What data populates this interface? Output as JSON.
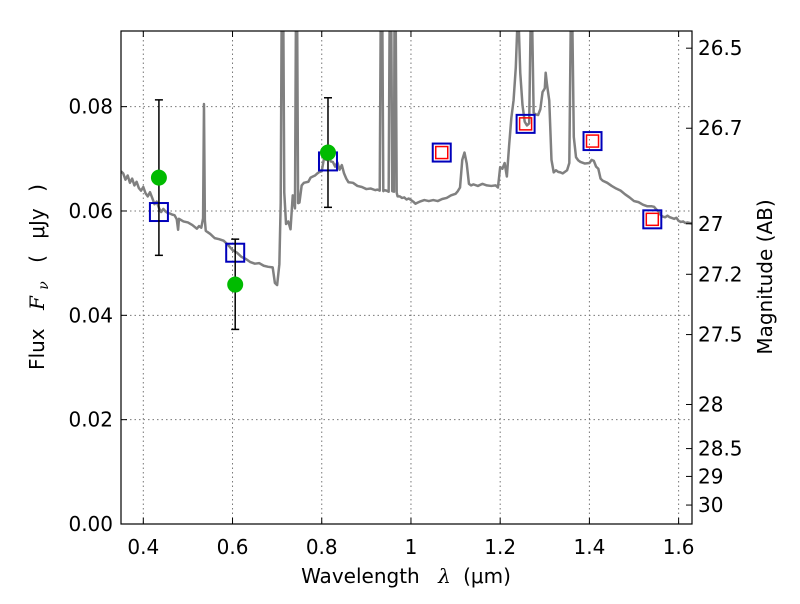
{
  "chart_data": {
    "type": "scatter",
    "xlabel_prefix": "Wavelength",
    "xlabel_symbol": "λ",
    "xlabel_unit": "(μm)",
    "ylabel_prefix": "Flux",
    "ylabel_symbol": "F",
    "ylabel_subscript": "ν",
    "ylabel_unit_open": "(",
    "ylabel_unit": "μJy",
    "ylabel_unit_close": ")",
    "y2label": "Magnitude (AB)",
    "xlim": [
      0.35,
      1.63
    ],
    "ylim": [
      0.0,
      0.0945
    ],
    "grid": true,
    "x_ticks": [
      {
        "value": 0.4,
        "label": "0.4"
      },
      {
        "value": 0.6,
        "label": "0.6"
      },
      {
        "value": 0.8,
        "label": "0.8"
      },
      {
        "value": 1.0,
        "label": "1"
      },
      {
        "value": 1.2,
        "label": "1.2"
      },
      {
        "value": 1.4,
        "label": "1.4"
      },
      {
        "value": 1.6,
        "label": "1.6"
      }
    ],
    "y_ticks": [
      {
        "value": 0.0,
        "label": "0.00"
      },
      {
        "value": 0.02,
        "label": "0.02"
      },
      {
        "value": 0.04,
        "label": "0.04"
      },
      {
        "value": 0.06,
        "label": "0.06"
      },
      {
        "value": 0.08,
        "label": "0.08"
      }
    ],
    "y2_ticks": [
      {
        "value": 26.5,
        "label": "26.5"
      },
      {
        "value": 26.7,
        "label": "26.7"
      },
      {
        "value": 27.0,
        "label": "27"
      },
      {
        "value": 27.2,
        "label": "27.2"
      },
      {
        "value": 27.5,
        "label": "27.5"
      },
      {
        "value": 28.0,
        "label": "28"
      },
      {
        "value": 28.5,
        "label": "28.5"
      },
      {
        "value": 29.0,
        "label": "29"
      },
      {
        "value": 30.0,
        "label": "30"
      }
    ],
    "colors": {
      "model": "#808080",
      "observed": "#00bb00",
      "model_blue": "#0000bb",
      "model_red": "#ff0000",
      "errorbar": "#000000"
    },
    "observed_points": [
      {
        "x": 0.435,
        "y": 0.0664,
        "err_low": 0.0515,
        "err_high": 0.0813
      },
      {
        "x": 0.606,
        "y": 0.0459,
        "err_low": 0.0373,
        "err_high": 0.0546
      },
      {
        "x": 0.814,
        "y": 0.0712,
        "err_low": 0.0607,
        "err_high": 0.0817
      }
    ],
    "model_photometry_blue": [
      {
        "x": 0.435,
        "y": 0.0598
      },
      {
        "x": 0.606,
        "y": 0.052
      },
      {
        "x": 0.814,
        "y": 0.0695
      },
      {
        "x": 1.069,
        "y": 0.0712
      },
      {
        "x": 1.257,
        "y": 0.0767
      },
      {
        "x": 1.407,
        "y": 0.0734
      },
      {
        "x": 1.541,
        "y": 0.0584
      }
    ],
    "model_photometry_red": [
      {
        "x": 1.069,
        "y": 0.0712
      },
      {
        "x": 1.257,
        "y": 0.0767
      },
      {
        "x": 1.407,
        "y": 0.0734
      },
      {
        "x": 1.541,
        "y": 0.0584
      }
    ],
    "sed_spectrum": [
      [
        0.35,
        0.0676
      ],
      [
        0.355,
        0.0672
      ],
      [
        0.36,
        0.066
      ],
      [
        0.365,
        0.0668
      ],
      [
        0.37,
        0.0654
      ],
      [
        0.375,
        0.0662
      ],
      [
        0.38,
        0.0649
      ],
      [
        0.385,
        0.0656
      ],
      [
        0.39,
        0.0644
      ],
      [
        0.395,
        0.0639
      ],
      [
        0.4,
        0.0646
      ],
      [
        0.405,
        0.0634
      ],
      [
        0.41,
        0.0628
      ],
      [
        0.415,
        0.0636
      ],
      [
        0.42,
        0.0625
      ],
      [
        0.425,
        0.0613
      ],
      [
        0.43,
        0.0618
      ],
      [
        0.435,
        0.0606
      ],
      [
        0.44,
        0.0598
      ],
      [
        0.445,
        0.0604
      ],
      [
        0.45,
        0.0599
      ],
      [
        0.455,
        0.0596
      ],
      [
        0.46,
        0.0595
      ],
      [
        0.465,
        0.0593
      ],
      [
        0.47,
        0.0592
      ],
      [
        0.475,
        0.0584
      ],
      [
        0.478,
        0.0564
      ],
      [
        0.48,
        0.0585
      ],
      [
        0.49,
        0.058
      ],
      [
        0.5,
        0.0578
      ],
      [
        0.51,
        0.0573
      ],
      [
        0.52,
        0.0566
      ],
      [
        0.525,
        0.0571
      ],
      [
        0.53,
        0.0568
      ],
      [
        0.534,
        0.0586
      ],
      [
        0.536,
        0.0805
      ],
      [
        0.538,
        0.0582
      ],
      [
        0.54,
        0.0562
      ],
      [
        0.55,
        0.0556
      ],
      [
        0.56,
        0.0548
      ],
      [
        0.57,
        0.0546
      ],
      [
        0.58,
        0.0543
      ],
      [
        0.59,
        0.0535
      ],
      [
        0.6,
        0.0525
      ],
      [
        0.61,
        0.052
      ],
      [
        0.62,
        0.0512
      ],
      [
        0.63,
        0.0508
      ],
      [
        0.64,
        0.0502
      ],
      [
        0.65,
        0.0499
      ],
      [
        0.66,
        0.05
      ],
      [
        0.67,
        0.0495
      ],
      [
        0.68,
        0.0493
      ],
      [
        0.69,
        0.0492
      ],
      [
        0.695,
        0.0462
      ],
      [
        0.7,
        0.0458
      ],
      [
        0.705,
        0.0498
      ],
      [
        0.708,
        0.0615
      ],
      [
        0.71,
        0.095
      ],
      [
        0.714,
        0.095
      ],
      [
        0.716,
        0.0635
      ],
      [
        0.72,
        0.0575
      ],
      [
        0.725,
        0.058
      ],
      [
        0.73,
        0.0565
      ],
      [
        0.735,
        0.063
      ],
      [
        0.74,
        0.0605
      ],
      [
        0.742,
        0.095
      ],
      [
        0.745,
        0.095
      ],
      [
        0.747,
        0.0615
      ],
      [
        0.75,
        0.0616
      ],
      [
        0.755,
        0.0649
      ],
      [
        0.76,
        0.0654
      ],
      [
        0.77,
        0.0656
      ],
      [
        0.775,
        0.0664
      ],
      [
        0.78,
        0.0666
      ],
      [
        0.785,
        0.0668
      ],
      [
        0.79,
        0.0672
      ],
      [
        0.795,
        0.0675
      ],
      [
        0.8,
        0.0676
      ],
      [
        0.805,
        0.0701
      ],
      [
        0.81,
        0.0698
      ],
      [
        0.815,
        0.0712
      ],
      [
        0.82,
        0.0695
      ],
      [
        0.825,
        0.0694
      ],
      [
        0.83,
        0.0685
      ],
      [
        0.835,
        0.0693
      ],
      [
        0.84,
        0.0679
      ],
      [
        0.845,
        0.0688
      ],
      [
        0.85,
        0.0672
      ],
      [
        0.855,
        0.0662
      ],
      [
        0.86,
        0.0655
      ],
      [
        0.87,
        0.0654
      ],
      [
        0.88,
        0.0648
      ],
      [
        0.89,
        0.0646
      ],
      [
        0.9,
        0.0642
      ],
      [
        0.91,
        0.0643
      ],
      [
        0.92,
        0.064
      ],
      [
        0.925,
        0.0641
      ],
      [
        0.93,
        0.0639
      ],
      [
        0.932,
        0.0945
      ],
      [
        0.936,
        0.0945
      ],
      [
        0.938,
        0.0638
      ],
      [
        0.94,
        0.064
      ],
      [
        0.945,
        0.0639
      ],
      [
        0.95,
        0.0637
      ],
      [
        0.952,
        0.0945
      ],
      [
        0.956,
        0.0945
      ],
      [
        0.958,
        0.0638
      ],
      [
        0.962,
        0.0637
      ],
      [
        0.963,
        0.0945
      ],
      [
        0.966,
        0.0945
      ],
      [
        0.968,
        0.0635
      ],
      [
        0.97,
        0.0628
      ],
      [
        0.975,
        0.0628
      ],
      [
        0.98,
        0.0625
      ],
      [
        0.985,
        0.0626
      ],
      [
        0.99,
        0.0622
      ],
      [
        0.995,
        0.0624
      ],
      [
        1.0,
        0.0621
      ],
      [
        1.005,
        0.0618
      ],
      [
        1.01,
        0.0614
      ],
      [
        1.015,
        0.0616
      ],
      [
        1.02,
        0.0618
      ],
      [
        1.03,
        0.0621
      ],
      [
        1.04,
        0.0619
      ],
      [
        1.05,
        0.0621
      ],
      [
        1.06,
        0.0619
      ],
      [
        1.07,
        0.0623
      ],
      [
        1.08,
        0.0625
      ],
      [
        1.09,
        0.063
      ],
      [
        1.1,
        0.0633
      ],
      [
        1.105,
        0.0638
      ],
      [
        1.11,
        0.0645
      ],
      [
        1.115,
        0.0698
      ],
      [
        1.12,
        0.0712
      ],
      [
        1.125,
        0.0691
      ],
      [
        1.13,
        0.0652
      ],
      [
        1.135,
        0.0649
      ],
      [
        1.14,
        0.0651
      ],
      [
        1.15,
        0.0648
      ],
      [
        1.16,
        0.0652
      ],
      [
        1.17,
        0.0649
      ],
      [
        1.18,
        0.0648
      ],
      [
        1.19,
        0.0649
      ],
      [
        1.195,
        0.0645
      ],
      [
        1.2,
        0.0684
      ],
      [
        1.205,
        0.0681
      ],
      [
        1.21,
        0.0692
      ],
      [
        1.215,
        0.0666
      ],
      [
        1.22,
        0.0725
      ],
      [
        1.225,
        0.0778
      ],
      [
        1.23,
        0.0812
      ],
      [
        1.235,
        0.0875
      ],
      [
        1.238,
        0.0945
      ],
      [
        1.242,
        0.0945
      ],
      [
        1.245,
        0.0865
      ],
      [
        1.25,
        0.0803
      ],
      [
        1.255,
        0.0771
      ],
      [
        1.26,
        0.0764
      ],
      [
        1.265,
        0.0768
      ],
      [
        1.268,
        0.0945
      ],
      [
        1.272,
        0.0945
      ],
      [
        1.275,
        0.0788
      ],
      [
        1.28,
        0.0785
      ],
      [
        1.285,
        0.0784
      ],
      [
        1.29,
        0.0795
      ],
      [
        1.295,
        0.0828
      ],
      [
        1.3,
        0.0835
      ],
      [
        1.302,
        0.0865
      ],
      [
        1.305,
        0.0842
      ],
      [
        1.31,
        0.0812
      ],
      [
        1.315,
        0.0698
      ],
      [
        1.32,
        0.0674
      ],
      [
        1.325,
        0.0678
      ],
      [
        1.33,
        0.0675
      ],
      [
        1.335,
        0.0674
      ],
      [
        1.34,
        0.0672
      ],
      [
        1.345,
        0.0675
      ],
      [
        1.35,
        0.0678
      ],
      [
        1.355,
        0.0692
      ],
      [
        1.358,
        0.0945
      ],
      [
        1.362,
        0.0945
      ],
      [
        1.365,
        0.0742
      ],
      [
        1.37,
        0.0703
      ],
      [
        1.375,
        0.0697
      ],
      [
        1.38,
        0.0694
      ],
      [
        1.39,
        0.0691
      ],
      [
        1.4,
        0.0692
      ],
      [
        1.405,
        0.0698
      ],
      [
        1.41,
        0.0696
      ],
      [
        1.415,
        0.0685
      ],
      [
        1.42,
        0.0681
      ],
      [
        1.425,
        0.0662
      ],
      [
        1.43,
        0.0658
      ],
      [
        1.44,
        0.0654
      ],
      [
        1.45,
        0.0648
      ],
      [
        1.46,
        0.0643
      ],
      [
        1.47,
        0.0639
      ],
      [
        1.48,
        0.0632
      ],
      [
        1.49,
        0.0626
      ],
      [
        1.5,
        0.0619
      ],
      [
        1.51,
        0.0617
      ],
      [
        1.52,
        0.0612
      ],
      [
        1.53,
        0.0609
      ],
      [
        1.54,
        0.0609
      ],
      [
        1.545,
        0.0608
      ],
      [
        1.55,
        0.0603
      ],
      [
        1.555,
        0.0599
      ],
      [
        1.56,
        0.0592
      ],
      [
        1.565,
        0.0589
      ],
      [
        1.57,
        0.0588
      ],
      [
        1.575,
        0.0591
      ],
      [
        1.58,
        0.0588
      ],
      [
        1.59,
        0.0585
      ],
      [
        1.595,
        0.0587
      ],
      [
        1.6,
        0.0581
      ],
      [
        1.605,
        0.0579
      ],
      [
        1.61,
        0.058
      ],
      [
        1.615,
        0.0577
      ],
      [
        1.62,
        0.0578
      ],
      [
        1.625,
        0.0577
      ],
      [
        1.63,
        0.0576
      ]
    ]
  }
}
